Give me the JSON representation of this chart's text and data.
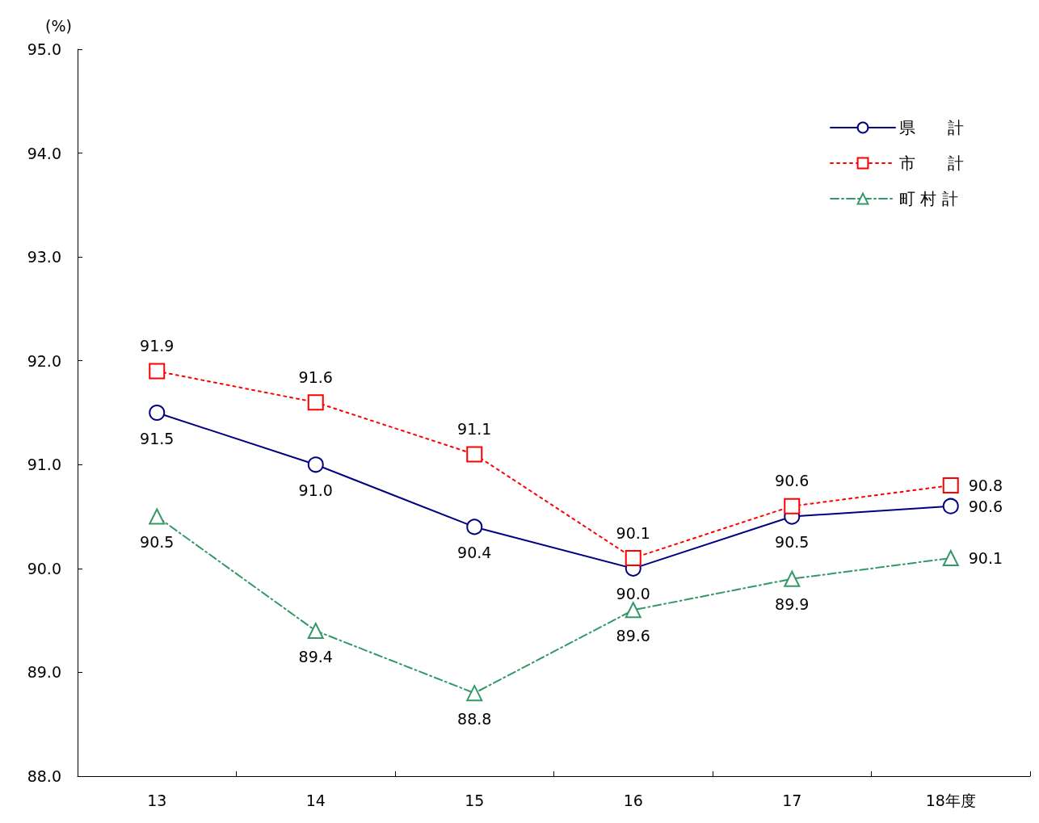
{
  "chart_data": {
    "type": "line",
    "ylabel": "(%)",
    "categories": [
      "13",
      "14",
      "15",
      "16",
      "17",
      "18年度"
    ],
    "ylim": [
      88,
      95
    ],
    "yticks": [
      {
        "value": 88,
        "label": "88.0"
      },
      {
        "value": 89,
        "label": "89.0"
      },
      {
        "value": 90,
        "label": "90.0"
      },
      {
        "value": 91,
        "label": "91.0"
      },
      {
        "value": 92,
        "label": "92.0"
      },
      {
        "value": 93,
        "label": "93.0"
      },
      {
        "value": 94,
        "label": "94.0"
      },
      {
        "value": 95,
        "label": "95.0"
      }
    ],
    "grid": false,
    "legend": "top right",
    "series": [
      {
        "name": "県　　計",
        "color": "#000080",
        "marker": "circle",
        "line_style": "solid",
        "values": [
          91.5,
          91.0,
          90.4,
          90.0,
          90.5,
          90.6
        ],
        "value_labels": [
          "91.5",
          "91.0",
          "90.4",
          "90.0",
          "90.5",
          "90.6"
        ]
      },
      {
        "name": "市　　計",
        "color": "#ff0000",
        "marker": "square",
        "line_style": "dotted",
        "values": [
          91.9,
          91.6,
          91.1,
          90.1,
          90.6,
          90.8
        ],
        "value_labels": [
          "91.9",
          "91.6",
          "91.1",
          "90.1",
          "90.6",
          "90.8"
        ]
      },
      {
        "name": "町 村 計",
        "color": "#339966",
        "marker": "triangle",
        "line_style": "dashed",
        "values": [
          90.5,
          89.4,
          88.8,
          89.6,
          89.9,
          90.1
        ],
        "value_labels": [
          "90.5",
          "89.4",
          "88.8",
          "89.6",
          "89.9",
          "90.1"
        ]
      }
    ]
  }
}
